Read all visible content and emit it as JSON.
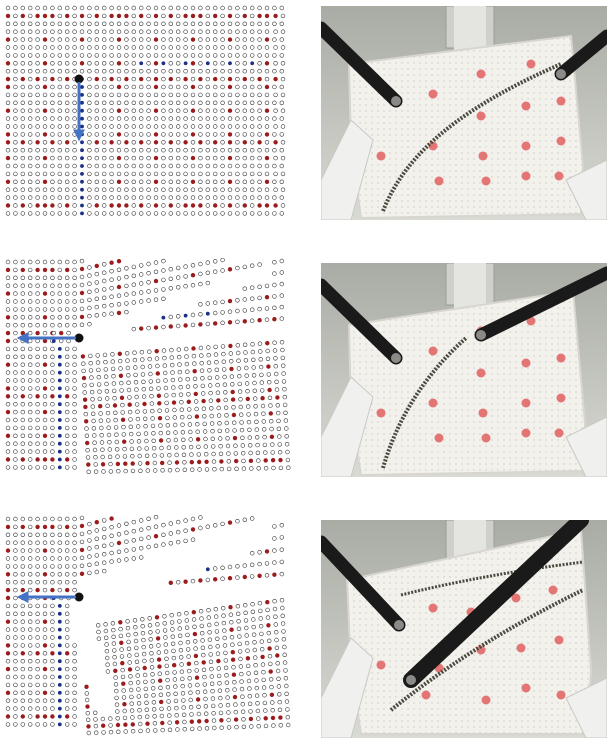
{
  "figure": {
    "rows": [
      {
        "row": 1,
        "step": "initial",
        "arrow_direction": "down"
      },
      {
        "row": 2,
        "step": "cut-progress",
        "arrow_direction": "left"
      },
      {
        "row": 3,
        "step": "cut-complete",
        "arrow_direction": "left"
      }
    ],
    "colors": {
      "node_outline": "#333333",
      "marker_red": "#9b1c1c",
      "marker_blue": "#1b2f8a",
      "arrow": "#4472c4",
      "grasp_point": "#111111",
      "tissue_marker": "#e06060",
      "background_photo": "#b9bbb5",
      "tissue": "#f2f1ec",
      "instrument": "#1a1a1a",
      "cut_line": "#4a4a3e"
    },
    "icons": [
      "simulation-mesh",
      "grasp-point-icon",
      "pull-arrow-icon",
      "surgical-instrument",
      "tissue-phantom"
    ]
  }
}
